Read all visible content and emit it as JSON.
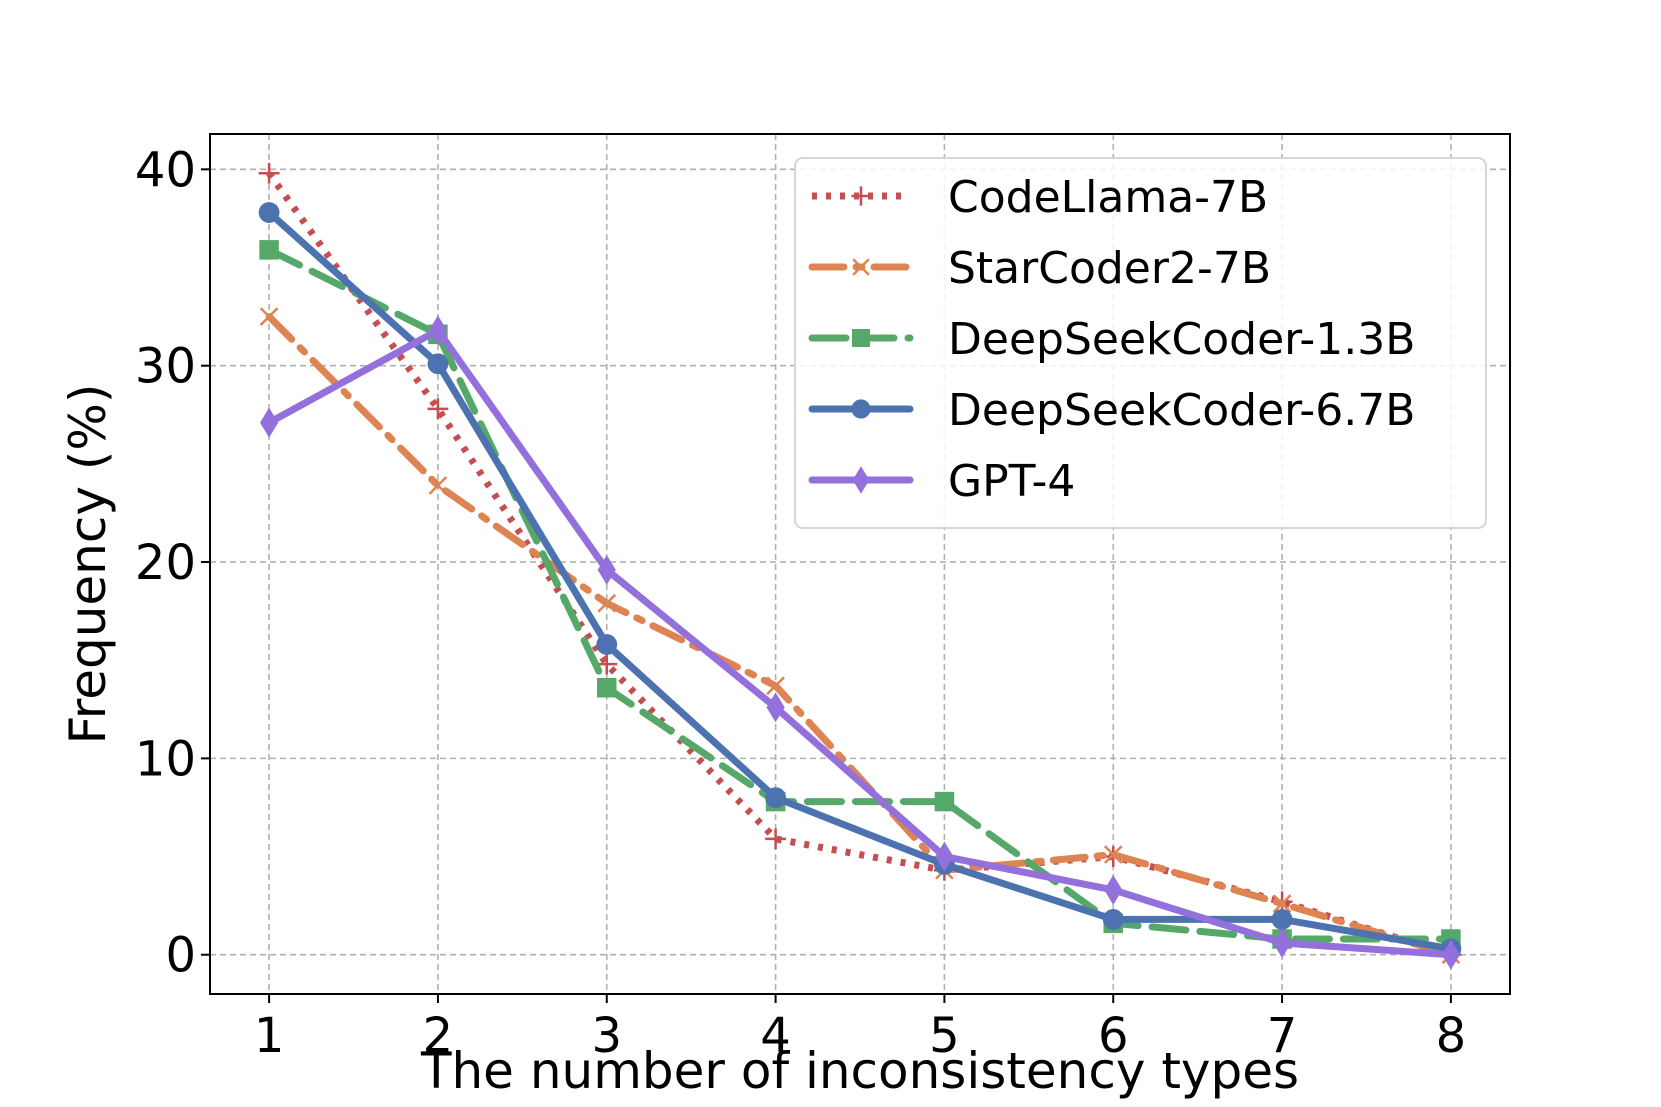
{
  "chart_data": {
    "type": "line",
    "title": "",
    "xlabel": "The number of inconsistency types",
    "ylabel": "Frequency (%)",
    "x": [
      1,
      2,
      3,
      4,
      5,
      6,
      7,
      8
    ],
    "x_ticks": [
      "1",
      "2",
      "3",
      "4",
      "5",
      "6",
      "7",
      "8"
    ],
    "y_ticks": [
      "0",
      "10",
      "20",
      "30",
      "40"
    ],
    "xlim": [
      0.65,
      8.35
    ],
    "ylim": [
      -2,
      41.8
    ],
    "grid": true,
    "legend_position": "top-right",
    "series": [
      {
        "name": "CodeLlama-7B",
        "values": [
          39.8,
          27.8,
          14.8,
          5.9,
          4.3,
          5.0,
          2.7,
          0.0
        ],
        "color": "#c44e52",
        "line_style": "dotted",
        "marker": "plus"
      },
      {
        "name": "StarCoder2-7B",
        "values": [
          32.5,
          23.9,
          17.9,
          13.7,
          4.3,
          5.1,
          2.6,
          0.0
        ],
        "color": "#dd8452",
        "line_style": "dashdot",
        "marker": "x"
      },
      {
        "name": "DeepSeekCoder-1.3B",
        "values": [
          35.9,
          31.6,
          13.6,
          7.8,
          7.8,
          1.6,
          0.8,
          0.8
        ],
        "color": "#55a868",
        "line_style": "dashed",
        "marker": "square"
      },
      {
        "name": "DeepSeekCoder-6.7B",
        "values": [
          37.8,
          30.1,
          15.8,
          8.0,
          4.6,
          1.8,
          1.8,
          0.3
        ],
        "color": "#4c72b0",
        "line_style": "solid",
        "marker": "circle"
      },
      {
        "name": "GPT-4",
        "values": [
          27.1,
          31.8,
          19.6,
          12.6,
          5.0,
          3.3,
          0.6,
          0.0
        ],
        "color": "#9370db",
        "line_style": "solid",
        "marker": "diamond"
      }
    ]
  }
}
